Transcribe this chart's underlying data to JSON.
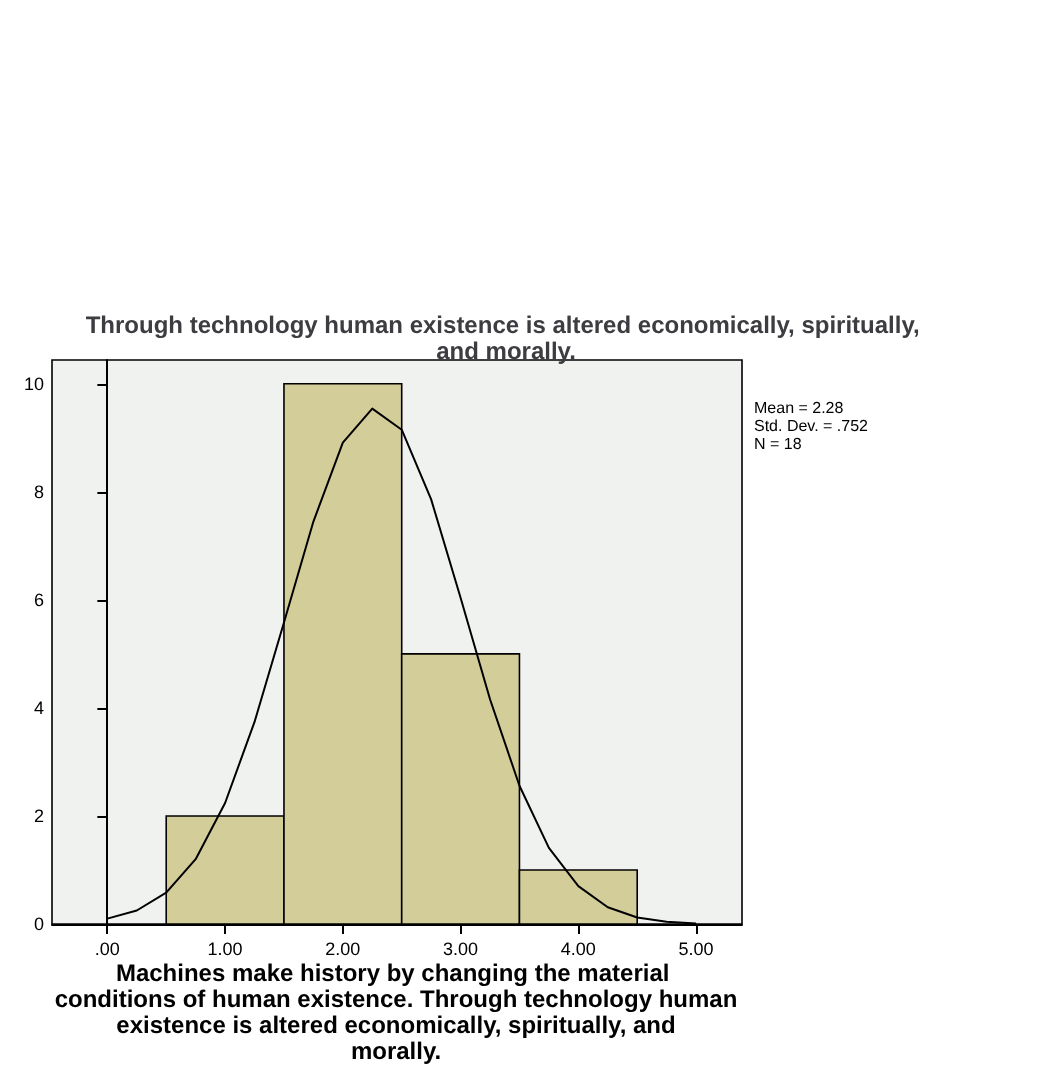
{
  "chart_data": {
    "type": "histogram",
    "title": "Through technology human existence is altered economically, spiritually, and morally.",
    "xlabel": "Machines make history by changing the material conditions of human existence. Through technology human existence is altered economically, spiritually, and morally.",
    "bins": [
      0.5,
      1.5,
      2.5,
      3.5,
      4.5
    ],
    "values": [
      2,
      10,
      5,
      1
    ],
    "color": "#d3cd9a",
    "series": [
      {
        "type": "line",
        "color": "#000000",
        "x": [
          0,
          0.25,
          0.5,
          0.75,
          1,
          1.25,
          1.5,
          1.75,
          2,
          2.25,
          2.5,
          2.75,
          3,
          3.25,
          3.5,
          3.75,
          4,
          4.25,
          4.5,
          4.75,
          5
        ],
        "values": [
          0.1,
          0.25,
          0.58,
          1.2,
          2.24,
          3.74,
          5.58,
          7.45,
          8.91,
          9.54,
          9.15,
          7.86,
          6.04,
          4.16,
          2.56,
          1.41,
          0.7,
          0.31,
          0.12,
          0.04,
          0.01
        ]
      }
    ],
    "xlim": [
      -0.47,
      5.39
    ],
    "xticks": [
      {
        "value": 0,
        "label": ".00"
      },
      {
        "value": 1,
        "label": "1.00"
      },
      {
        "value": 2,
        "label": "2.00"
      },
      {
        "value": 3,
        "label": "3.00"
      },
      {
        "value": 4,
        "label": "4.00"
      },
      {
        "value": 5,
        "label": "5.00"
      }
    ],
    "ylim": [
      0,
      10.44
    ],
    "yticks": [
      0,
      2,
      4,
      6,
      8,
      10
    ],
    "marker": "none",
    "annotations": [
      "Mean = 2.28",
      "Std. Dev. = .752",
      "N = 18"
    ]
  }
}
